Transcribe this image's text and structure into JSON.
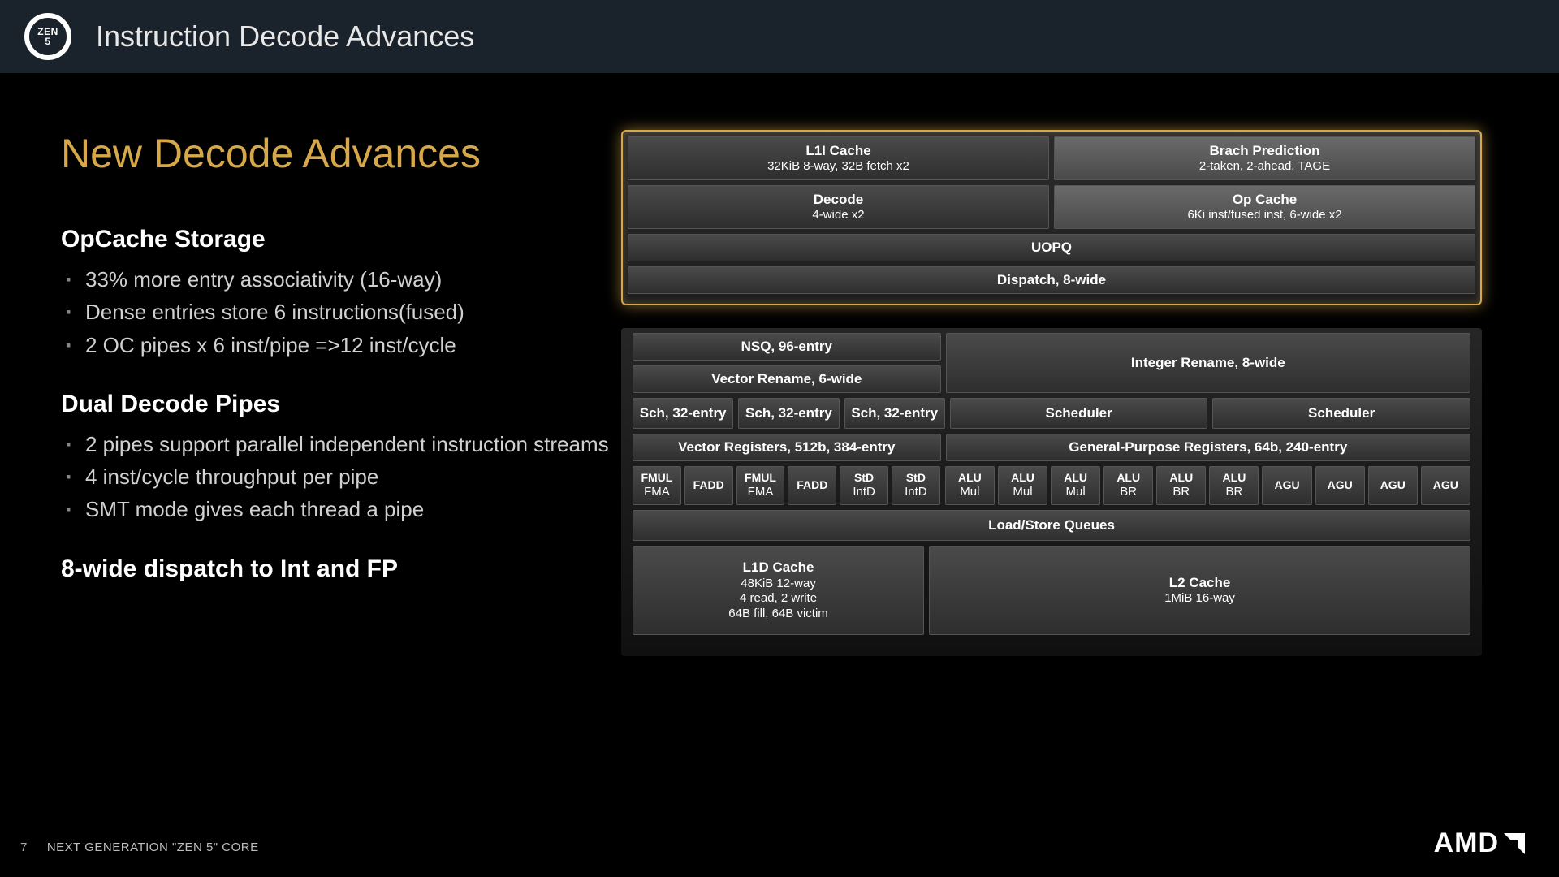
{
  "colors": {
    "bg": "#000000",
    "header_bg": "#1a222c",
    "heading_gold": "#d6a84a",
    "glow_gold": "#d6a84a",
    "text": "#ffffff",
    "muted": "#d0d0d0",
    "cell_bg_top": "#4a4a4a",
    "cell_bg_bottom": "#2e2e2e",
    "cell_light_top": "#6a6a6a"
  },
  "logo": {
    "line1": "ZEN",
    "line2": "5"
  },
  "header_title": "Instruction Decode Advances",
  "main_heading": "New Decode Advances",
  "sections": [
    {
      "title": "OpCache Storage",
      "bullets": [
        "33% more entry associativity (16-way)",
        "Dense entries store 6 instructions(fused)",
        "2 OC pipes x 6 inst/pipe =>12 inst/cycle"
      ]
    },
    {
      "title": "Dual Decode Pipes",
      "bullets": [
        "2 pipes support parallel independent instruction streams",
        "4 inst/cycle throughput per pipe",
        "SMT mode gives each thread a pipe"
      ]
    }
  ],
  "final_line": "8-wide dispatch to Int and FP",
  "diagram": {
    "top_highlight": {
      "row1": [
        {
          "t1": "L1I Cache",
          "t2": "32KiB 8-way, 32B fetch x2",
          "w": 0.5
        },
        {
          "t1": "Brach Prediction",
          "t2": "2-taken, 2-ahead, TAGE",
          "w": 0.5,
          "light": true
        }
      ],
      "row2": [
        {
          "t1": "Decode",
          "t2": "4-wide x2",
          "w": 0.5
        },
        {
          "t1": "Op Cache",
          "t2": "6Ki inst/fused inst, 6-wide x2",
          "w": 0.5,
          "light": true
        }
      ],
      "row3": [
        {
          "t1": "UOPQ",
          "w": 1.0
        }
      ],
      "row4": [
        {
          "t1": "Dispatch, 8-wide",
          "w": 1.0
        }
      ]
    },
    "mid": {
      "row_a": [
        {
          "t1": "NSQ, 96-entry",
          "w": 0.37
        },
        {
          "t1": "Integer Rename, 8-wide",
          "w": 0.63,
          "tall": true
        }
      ],
      "row_b": [
        {
          "t1": "Vector Rename, 6-wide",
          "w": 0.37
        }
      ],
      "row_c": [
        {
          "t1": "Sch, 32-entry",
          "w": 0.1233
        },
        {
          "t1": "Sch, 32-entry",
          "w": 0.1233
        },
        {
          "t1": "Sch, 32-entry",
          "w": 0.1233
        },
        {
          "t1": "Scheduler",
          "w": 0.315
        },
        {
          "t1": "Scheduler",
          "w": 0.315
        }
      ],
      "row_d": [
        {
          "t1": "Vector Registers, 512b, 384-entry",
          "w": 0.37
        },
        {
          "t1": "General-Purpose Registers, 64b, 240-entry",
          "w": 0.63
        }
      ],
      "row_e_left": [
        {
          "t1": "FMUL",
          "t2": "FMA"
        },
        {
          "t1": "FADD"
        },
        {
          "t1": "FMUL",
          "t2": "FMA"
        },
        {
          "t1": "FADD"
        },
        {
          "t1": "StD",
          "t2": "IntD"
        },
        {
          "t1": "StD",
          "t2": "IntD"
        }
      ],
      "row_e_right": [
        {
          "t1": "ALU",
          "t2": "Mul"
        },
        {
          "t1": "ALU",
          "t2": "Mul"
        },
        {
          "t1": "ALU",
          "t2": "Mul"
        },
        {
          "t1": "ALU",
          "t2": "BR"
        },
        {
          "t1": "ALU",
          "t2": "BR"
        },
        {
          "t1": "ALU",
          "t2": "BR"
        },
        {
          "t1": "AGU"
        },
        {
          "t1": "AGU"
        },
        {
          "t1": "AGU"
        },
        {
          "t1": "AGU"
        }
      ],
      "row_f": [
        {
          "t1": "Load/Store Queues",
          "w": 1.0
        }
      ],
      "row_g": [
        {
          "lines": [
            "L1D Cache",
            "48KiB 12-way",
            "4 read, 2 write",
            "64B fill, 64B victim"
          ],
          "w": 0.35
        },
        {
          "lines": [
            "L2 Cache",
            "1MiB 16-way"
          ],
          "w": 0.65
        }
      ]
    }
  },
  "footer": {
    "page": "7",
    "text": "NEXT GENERATION \"ZEN 5\" CORE"
  },
  "brand": "AMD"
}
